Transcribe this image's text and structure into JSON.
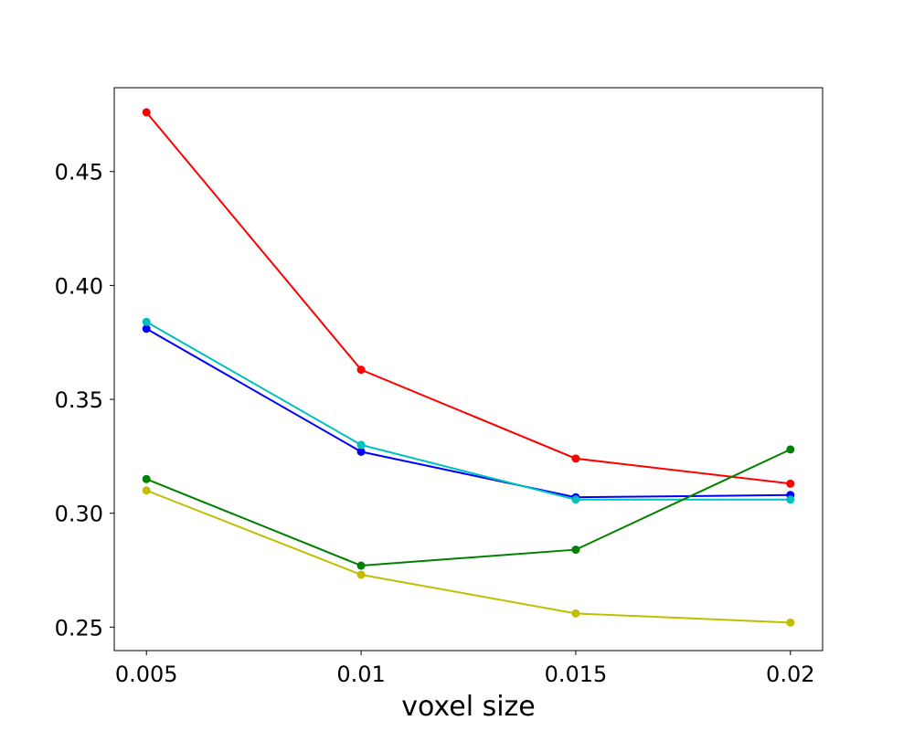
{
  "chart_data": {
    "type": "line",
    "title": "",
    "xlabel": "voxel size",
    "ylabel": "",
    "x": [
      0.005,
      0.01,
      0.015,
      0.02
    ],
    "x_tick_labels": [
      "0.005",
      "0.01",
      "0.015",
      "0.02"
    ],
    "y_ticks": [
      0.25,
      0.3,
      0.35,
      0.4,
      0.45
    ],
    "y_tick_labels": [
      "0.25",
      "0.30",
      "0.35",
      "0.40",
      "0.45"
    ],
    "xlim": [
      0.00425,
      0.02075
    ],
    "ylim": [
      0.2397,
      0.4868
    ],
    "grid": false,
    "series": [
      {
        "color": "#ff0000",
        "values": [
          0.476,
          0.363,
          0.324,
          0.313
        ]
      },
      {
        "color": "#0000ff",
        "values": [
          0.381,
          0.327,
          0.307,
          0.308
        ]
      },
      {
        "color": "#00bfbf",
        "values": [
          0.384,
          0.33,
          0.306,
          0.306
        ]
      },
      {
        "color": "#008000",
        "values": [
          0.315,
          0.277,
          0.284,
          0.328
        ]
      },
      {
        "color": "#bfbf00",
        "values": [
          0.31,
          0.273,
          0.256,
          0.252
        ]
      }
    ]
  }
}
